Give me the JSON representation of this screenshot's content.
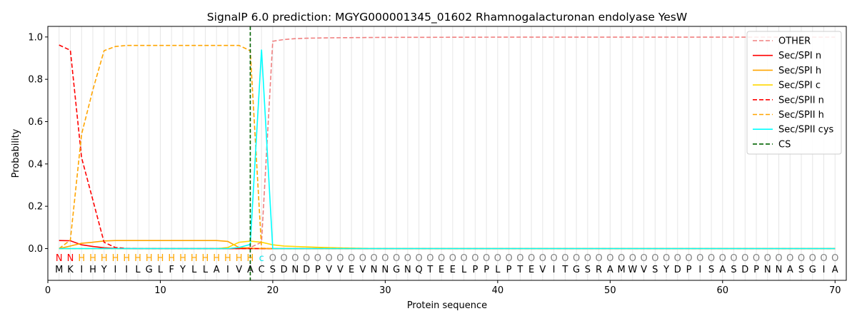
{
  "chart_data": {
    "type": "line",
    "title": "SignalP 6.0 prediction: MGYG000001345_01602 Rhamnogalacturonan endolyase YesW",
    "xlabel": "Protein sequence",
    "ylabel": "Probability",
    "xlim": [
      0,
      71
    ],
    "ylim": [
      -0.15,
      1.05
    ],
    "x_ticks": [
      0,
      10,
      20,
      30,
      40,
      50,
      60,
      70
    ],
    "y_ticks": [
      0.0,
      0.2,
      0.4,
      0.6,
      0.8,
      1.0
    ],
    "x_tick_labels": [
      "0",
      "10",
      "20",
      "30",
      "40",
      "50",
      "60",
      "70"
    ],
    "y_tick_labels": [
      "0.0",
      "0.2",
      "0.4",
      "0.6",
      "0.8",
      "1.0"
    ],
    "legend_position": "top-right",
    "grid": "vertical lines at each residue",
    "cleavage_site": 18,
    "sequence": [
      "M",
      "K",
      "I",
      "H",
      "Y",
      "I",
      "I",
      "L",
      "G",
      "L",
      "F",
      "Y",
      "L",
      "L",
      "A",
      "I",
      "V",
      "A",
      "C",
      "S",
      "D",
      "N",
      "D",
      "P",
      "V",
      "V",
      "E",
      "V",
      "N",
      "N",
      "G",
      "N",
      "Q",
      "T",
      "E",
      "E",
      "L",
      "P",
      "P",
      "L",
      "P",
      "T",
      "E",
      "V",
      "I",
      "T",
      "G",
      "S",
      "R",
      "A",
      "M",
      "W",
      "V",
      "S",
      "Y",
      "D",
      "P",
      "I",
      "S",
      "A",
      "S",
      "D",
      "P",
      "N",
      "N",
      "A",
      "S",
      "G",
      "I",
      "A"
    ],
    "labels": [
      "N",
      "N",
      "H",
      "H",
      "H",
      "H",
      "H",
      "H",
      "H",
      "H",
      "H",
      "H",
      "H",
      "H",
      "H",
      "H",
      "H",
      "H",
      "c",
      "O",
      "O",
      "O",
      "O",
      "O",
      "O",
      "O",
      "O",
      "O",
      "O",
      "O",
      "O",
      "O",
      "O",
      "O",
      "O",
      "O",
      "O",
      "O",
      "O",
      "O",
      "O",
      "O",
      "O",
      "O",
      "O",
      "O",
      "O",
      "O",
      "O",
      "O",
      "O",
      "O",
      "O",
      "O",
      "O",
      "O",
      "O",
      "O",
      "O",
      "O",
      "O",
      "O",
      "O",
      "O",
      "O",
      "O",
      "O",
      "O",
      "O",
      "O"
    ],
    "label_colors": {
      "N": "#ff0000",
      "H": "#ffa500",
      "c": "#00e5ee",
      "O": "#808080"
    },
    "series": [
      {
        "name": "OTHER",
        "color": "#f08080",
        "dash": "dashed",
        "points": [
          [
            1,
            0.0
          ],
          [
            2,
            0.0
          ],
          [
            3,
            0.0
          ],
          [
            17,
            0.0
          ],
          [
            18,
            0.005
          ],
          [
            19,
            0.03
          ],
          [
            20,
            0.98
          ],
          [
            21,
            0.988
          ],
          [
            22,
            0.992
          ],
          [
            23,
            0.994
          ],
          [
            25,
            0.996
          ],
          [
            30,
            0.998
          ],
          [
            40,
            0.999
          ],
          [
            70,
            0.999
          ]
        ]
      },
      {
        "name": "Sec/SPI n",
        "color": "#ff0000",
        "dash": "solid",
        "points": [
          [
            1,
            0.038
          ],
          [
            2,
            0.037
          ],
          [
            3,
            0.018
          ],
          [
            4,
            0.01
          ],
          [
            5,
            0.004
          ],
          [
            6,
            0.001
          ],
          [
            7,
            0.0
          ],
          [
            70,
            0.0
          ]
        ]
      },
      {
        "name": "Sec/SPI h",
        "color": "#ffa500",
        "dash": "solid",
        "points": [
          [
            1,
            0.0
          ],
          [
            2,
            0.012
          ],
          [
            3,
            0.025
          ],
          [
            4,
            0.03
          ],
          [
            5,
            0.036
          ],
          [
            6,
            0.038
          ],
          [
            7,
            0.038
          ],
          [
            15,
            0.038
          ],
          [
            16,
            0.034
          ],
          [
            17,
            0.005
          ],
          [
            18,
            0.002
          ],
          [
            19,
            0.0
          ],
          [
            70,
            0.0
          ]
        ]
      },
      {
        "name": "Sec/SPI c",
        "color": "#ffd700",
        "dash": "solid",
        "points": [
          [
            1,
            0.0
          ],
          [
            15,
            0.0
          ],
          [
            16,
            0.005
          ],
          [
            17,
            0.03
          ],
          [
            18,
            0.035
          ],
          [
            19,
            0.03
          ],
          [
            20,
            0.018
          ],
          [
            21,
            0.012
          ],
          [
            22,
            0.01
          ],
          [
            24,
            0.006
          ],
          [
            26,
            0.003
          ],
          [
            28,
            0.001
          ],
          [
            30,
            0.0
          ],
          [
            70,
            0.0
          ]
        ]
      },
      {
        "name": "Sec/SPII n",
        "color": "#ff0000",
        "dash": "dashed",
        "points": [
          [
            1,
            0.962
          ],
          [
            2,
            0.937
          ],
          [
            3,
            0.43
          ],
          [
            4,
            0.23
          ],
          [
            5,
            0.03
          ],
          [
            6,
            0.005
          ],
          [
            7,
            0.001
          ],
          [
            8,
            0.0
          ],
          [
            70,
            0.0
          ]
        ]
      },
      {
        "name": "Sec/SPII h",
        "color": "#ffa500",
        "dash": "dashed",
        "points": [
          [
            1,
            0.0
          ],
          [
            2,
            0.04
          ],
          [
            3,
            0.54
          ],
          [
            4,
            0.75
          ],
          [
            5,
            0.935
          ],
          [
            6,
            0.955
          ],
          [
            7,
            0.96
          ],
          [
            16,
            0.96
          ],
          [
            17,
            0.96
          ],
          [
            18,
            0.935
          ],
          [
            19,
            0.002
          ],
          [
            20,
            0.0
          ],
          [
            70,
            0.0
          ]
        ]
      },
      {
        "name": "Sec/SPII cys",
        "color": "#00ffff",
        "dash": "solid",
        "points": [
          [
            1,
            0.0
          ],
          [
            15,
            0.0
          ],
          [
            16,
            0.0
          ],
          [
            17,
            0.005
          ],
          [
            18,
            0.02
          ],
          [
            19,
            0.94
          ],
          [
            20,
            0.0
          ],
          [
            70,
            0.0
          ]
        ]
      },
      {
        "name": "CS",
        "color": "#006400",
        "dash": "dashed",
        "points": []
      }
    ]
  }
}
